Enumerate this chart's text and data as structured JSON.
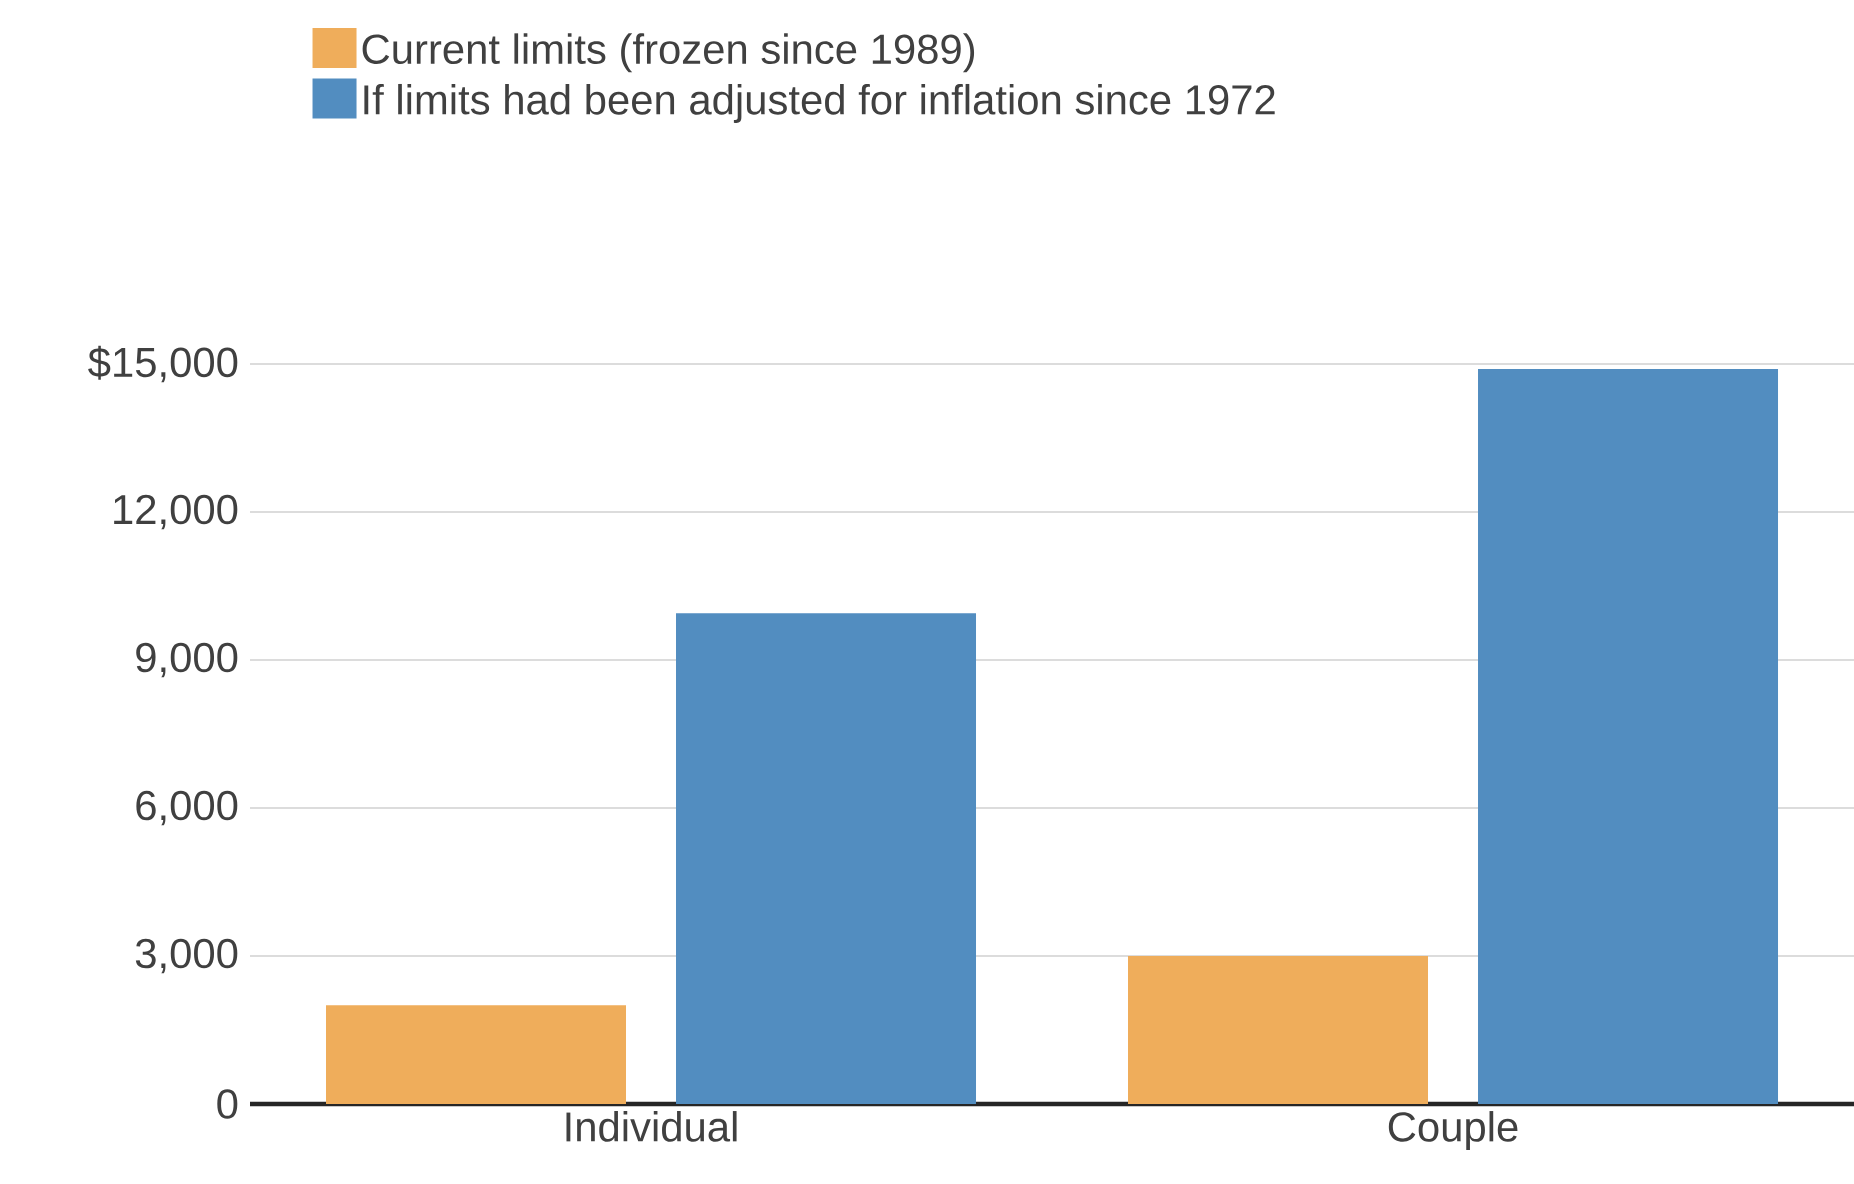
{
  "chart_data": {
    "type": "bar",
    "categories": [
      "Individual",
      "Couple"
    ],
    "series": [
      {
        "name": "Current limits (frozen since 1989)",
        "color": "#efad5b",
        "values": [
          2000,
          3000
        ]
      },
      {
        "name": "If limits had been adjusted for inflation since 1972",
        "color": "#528dc0",
        "values": [
          9950,
          14900
        ]
      }
    ],
    "ylim": [
      0,
      15000
    ],
    "yticks": [
      0,
      {
        "value": 3000,
        "label": "3,000"
      },
      {
        "value": 6000,
        "label": "6,000"
      },
      {
        "value": 9000,
        "label": "9,000"
      },
      {
        "value": 12000,
        "label": "12,000"
      },
      {
        "value": 15000,
        "label": "$15,000"
      }
    ],
    "grid": "y",
    "legend": "top left"
  }
}
